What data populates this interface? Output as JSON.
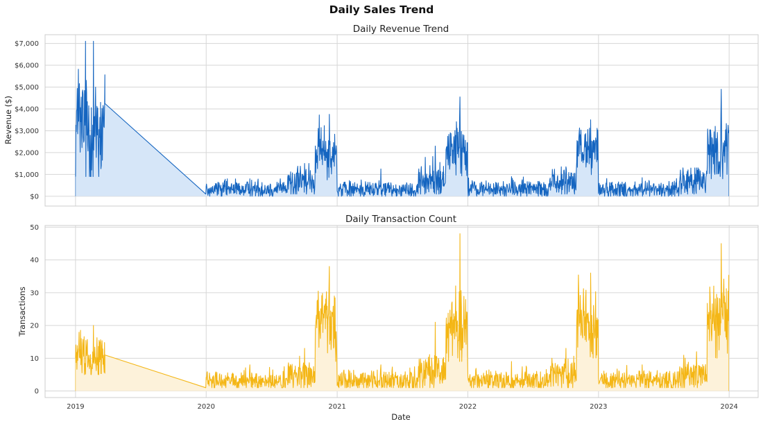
{
  "figure": {
    "title": "Daily Sales Trend",
    "xlabel": "Date"
  },
  "chart_data": [
    {
      "type": "area",
      "title": "Daily Revenue Trend",
      "xlabel": "",
      "ylabel": "Revenue ($)",
      "ylim": [
        -450,
        7400
      ],
      "xlim": [
        "2018-10-08",
        "2024-03-22"
      ],
      "grid": true,
      "line_color": "#1565c0",
      "fill_color": "#d6e6f8",
      "yticks": [
        0,
        1000,
        2000,
        3000,
        4000,
        5000,
        6000,
        7000
      ],
      "ytick_labels": [
        "$0",
        "$1,000",
        "$2,000",
        "$3,000",
        "$4,000",
        "$5,000",
        "$6,000",
        "$7,000"
      ],
      "xticks": [
        "2019-01-01",
        "2020-01-01",
        "2021-01-01",
        "2022-01-01",
        "2023-01-01",
        "2024-01-01"
      ],
      "xtick_labels": [
        "2019",
        "2020",
        "2021",
        "2022",
        "2023",
        "2024"
      ],
      "data_range": [
        "2019-01-01",
        "2023-12-31"
      ],
      "gap": [
        "2019-03-25",
        "2020-01-01"
      ],
      "values_at_gap": [
        4250,
        100
      ],
      "segments": [
        {
          "start": "2019-01-01",
          "end": "2019-03-24",
          "base": 3200,
          "noise": 1500,
          "max": 7100,
          "min": 900
        },
        {
          "start": "2020-01-01",
          "end": "2020-08-15",
          "base": 320,
          "noise": 200,
          "max": 800,
          "min": 0
        },
        {
          "start": "2020-08-16",
          "end": "2020-10-31",
          "base": 650,
          "noise": 380,
          "max": 1500,
          "min": 100
        },
        {
          "start": "2020-11-01",
          "end": "2020-12-31",
          "base": 2000,
          "noise": 650,
          "max": 3750,
          "min": 700
        },
        {
          "start": "2021-01-01",
          "end": "2021-08-15",
          "base": 320,
          "noise": 200,
          "max": 1250,
          "min": 0
        },
        {
          "start": "2021-08-16",
          "end": "2021-10-31",
          "base": 700,
          "noise": 400,
          "max": 2300,
          "min": 100
        },
        {
          "start": "2021-11-01",
          "end": "2021-12-31",
          "base": 2100,
          "noise": 700,
          "max": 4550,
          "min": 700
        },
        {
          "start": "2022-01-01",
          "end": "2022-08-15",
          "base": 320,
          "noise": 200,
          "max": 900,
          "min": 0
        },
        {
          "start": "2022-08-16",
          "end": "2022-10-31",
          "base": 600,
          "noise": 350,
          "max": 1350,
          "min": 100
        },
        {
          "start": "2022-11-01",
          "end": "2022-12-31",
          "base": 2100,
          "noise": 650,
          "max": 3500,
          "min": 800
        },
        {
          "start": "2023-01-01",
          "end": "2023-08-15",
          "base": 320,
          "noise": 200,
          "max": 850,
          "min": 0
        },
        {
          "start": "2023-08-16",
          "end": "2023-10-31",
          "base": 650,
          "noise": 380,
          "max": 1300,
          "min": 100
        },
        {
          "start": "2023-11-01",
          "end": "2023-12-31",
          "base": 2100,
          "noise": 700,
          "max": 4900,
          "min": 800
        }
      ]
    },
    {
      "type": "area",
      "title": "Daily Transaction Count",
      "xlabel": "Date",
      "ylabel": "Transactions",
      "ylim": [
        -2,
        50.5
      ],
      "xlim": [
        "2018-10-08",
        "2024-03-22"
      ],
      "grid": true,
      "line_color": "#f4b615",
      "fill_color": "#fdf2da",
      "yticks": [
        0,
        10,
        20,
        30,
        40,
        50
      ],
      "ytick_labels": [
        "0",
        "10",
        "20",
        "30",
        "40",
        "50"
      ],
      "xticks": [
        "2019-01-01",
        "2020-01-01",
        "2021-01-01",
        "2022-01-01",
        "2023-01-01",
        "2024-01-01"
      ],
      "xtick_labels": [
        "2019",
        "2020",
        "2021",
        "2022",
        "2023",
        "2024"
      ],
      "data_range": [
        "2019-01-01",
        "2023-12-31"
      ],
      "gap": [
        "2019-03-25",
        "2020-01-01"
      ],
      "values_at_gap": [
        11,
        1
      ],
      "segments": [
        {
          "start": "2019-01-01",
          "end": "2019-03-24",
          "base": 11,
          "noise": 3.5,
          "max": 20,
          "min": 5
        },
        {
          "start": "2020-01-01",
          "end": "2020-08-15",
          "base": 3,
          "noise": 1.6,
          "max": 8,
          "min": 1
        },
        {
          "start": "2020-08-16",
          "end": "2020-10-31",
          "base": 5,
          "noise": 2.5,
          "max": 13,
          "min": 1
        },
        {
          "start": "2020-11-01",
          "end": "2020-12-31",
          "base": 20,
          "noise": 5.5,
          "max": 38,
          "min": 9
        },
        {
          "start": "2021-01-01",
          "end": "2021-08-15",
          "base": 3,
          "noise": 1.6,
          "max": 8,
          "min": 1
        },
        {
          "start": "2021-08-16",
          "end": "2021-10-31",
          "base": 5,
          "noise": 3,
          "max": 21,
          "min": 1
        },
        {
          "start": "2021-11-01",
          "end": "2021-12-31",
          "base": 21,
          "noise": 6,
          "max": 48,
          "min": 9
        },
        {
          "start": "2022-01-01",
          "end": "2022-08-15",
          "base": 3,
          "noise": 1.6,
          "max": 9,
          "min": 1
        },
        {
          "start": "2022-08-16",
          "end": "2022-10-31",
          "base": 5,
          "noise": 2.5,
          "max": 13,
          "min": 1
        },
        {
          "start": "2022-11-01",
          "end": "2022-12-31",
          "base": 21,
          "noise": 5.5,
          "max": 36,
          "min": 10
        },
        {
          "start": "2023-01-01",
          "end": "2023-08-15",
          "base": 3,
          "noise": 1.6,
          "max": 8,
          "min": 1
        },
        {
          "start": "2023-08-16",
          "end": "2023-10-31",
          "base": 5,
          "noise": 2.5,
          "max": 12,
          "min": 1
        },
        {
          "start": "2023-11-01",
          "end": "2023-12-31",
          "base": 21,
          "noise": 6,
          "max": 45,
          "min": 10
        }
      ]
    }
  ]
}
